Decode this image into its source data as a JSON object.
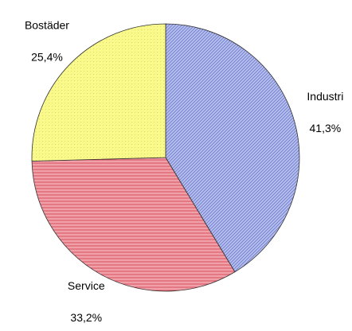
{
  "chart_data": {
    "type": "pie",
    "categories": [
      "Industri",
      "Service",
      "Bostäder"
    ],
    "values": [
      41.3,
      33.2,
      25.4
    ],
    "value_labels": [
      "41,3%",
      "33,2%",
      "25,4%"
    ],
    "colors": [
      "#b4bcec",
      "#f0a0a8",
      "#fafa8c"
    ]
  }
}
